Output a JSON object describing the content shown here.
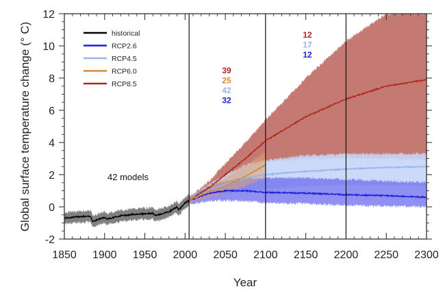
{
  "chart_data": {
    "type": "line",
    "title": "",
    "xlabel": "Year",
    "ylabel": "Global surface temperature change (° C)",
    "xlim": [
      1850,
      2300
    ],
    "ylim": [
      -2,
      12
    ],
    "xticks": [
      "1850",
      "1900",
      "1950",
      "2000",
      "2050",
      "2100",
      "2150",
      "2200",
      "2250",
      "2300"
    ],
    "yticks": [
      "-2",
      "0",
      "2",
      "4",
      "6",
      "8",
      "10",
      "12"
    ],
    "grid": false,
    "vertical_lines": [
      2005,
      2100,
      2200
    ],
    "legend": {
      "placement": "top-left",
      "entries": [
        {
          "label": "historical",
          "color": "#000000"
        },
        {
          "label": "RCP2.6",
          "color": "#1f1fd6"
        },
        {
          "label": "RCP4.5",
          "color": "#9bb6ea"
        },
        {
          "label": "RCP6.0",
          "color": "#d48b3c"
        },
        {
          "label": "RCP8.5",
          "color": "#b02a1c"
        }
      ]
    },
    "annotations": {
      "models_label": "42 models",
      "counts_2006_2100": [
        {
          "value": "39",
          "series": "RCP8.5",
          "color": "#b02a1c"
        },
        {
          "value": "25",
          "series": "RCP6.0",
          "color": "#d48b3c"
        },
        {
          "value": "42",
          "series": "RCP4.5",
          "color": "#9bb6ea"
        },
        {
          "value": "32",
          "series": "RCP2.6",
          "color": "#1f1fd6"
        }
      ],
      "counts_2100_2300": [
        {
          "value": "12",
          "series": "RCP8.5",
          "color": "#b02a1c"
        },
        {
          "value": "17",
          "series": "RCP4.5",
          "color": "#9bb6ea"
        },
        {
          "value": "12",
          "series": "RCP2.6",
          "color": "#1f1fd6"
        }
      ]
    },
    "series": [
      {
        "name": "historical",
        "color": "#000000",
        "band_color": "#808080",
        "x": [
          1850,
          1870,
          1883,
          1885,
          1900,
          1903,
          1920,
          1940,
          1960,
          1963,
          1980,
          1990,
          1992,
          2000,
          2005
        ],
        "mean": [
          -0.7,
          -0.6,
          -0.6,
          -0.9,
          -0.65,
          -0.75,
          -0.55,
          -0.45,
          -0.4,
          -0.55,
          -0.3,
          0.0,
          -0.2,
          0.25,
          0.4
        ],
        "band": 0.35
      },
      {
        "name": "RCP2.6",
        "color": "#1f1fd6",
        "band_color": "#6b6bee",
        "x": [
          2005,
          2030,
          2050,
          2075,
          2100,
          2150,
          2200,
          2250,
          2300
        ],
        "mean": [
          0.4,
          0.85,
          1.0,
          1.0,
          0.9,
          0.85,
          0.75,
          0.7,
          0.6
        ],
        "low": [
          0.15,
          0.35,
          0.4,
          0.35,
          0.25,
          0.2,
          0.1,
          0.05,
          0.0
        ],
        "high": [
          0.6,
          1.3,
          1.6,
          1.8,
          1.8,
          1.8,
          1.7,
          1.6,
          1.5
        ]
      },
      {
        "name": "RCP4.5",
        "color": "#9bb6ea",
        "band_color": "#c5d6f7",
        "x": [
          2005,
          2030,
          2050,
          2075,
          2100,
          2150,
          2200,
          2250,
          2300
        ],
        "mean": [
          0.4,
          1.0,
          1.4,
          1.8,
          2.0,
          2.2,
          2.35,
          2.45,
          2.5
        ],
        "low": [
          0.2,
          0.6,
          0.8,
          1.0,
          1.1,
          1.3,
          1.35,
          1.35,
          1.3
        ],
        "high": [
          0.6,
          1.4,
          2.0,
          2.6,
          2.9,
          3.2,
          3.3,
          3.3,
          3.3
        ]
      },
      {
        "name": "RCP6.0",
        "color": "#d48b3c",
        "band_color": "#e0a070",
        "x": [
          2005,
          2030,
          2050,
          2075,
          2100
        ],
        "mean": [
          0.4,
          0.95,
          1.3,
          1.9,
          2.6
        ],
        "low": [
          0.2,
          0.6,
          0.85,
          1.3,
          1.8
        ],
        "high": [
          0.6,
          1.3,
          1.8,
          2.6,
          3.4
        ]
      },
      {
        "name": "RCP8.5",
        "color": "#b02a1c",
        "band_color": "#c47a72",
        "x": [
          2005,
          2030,
          2050,
          2075,
          2100,
          2150,
          2200,
          2250,
          2300
        ],
        "mean": [
          0.4,
          1.2,
          2.0,
          3.0,
          4.1,
          5.6,
          6.7,
          7.5,
          7.9
        ],
        "low": [
          0.2,
          0.8,
          1.3,
          2.0,
          2.8,
          3.0,
          3.0,
          3.0,
          2.9
        ],
        "high": [
          0.6,
          1.6,
          2.7,
          4.0,
          5.4,
          8.0,
          10.3,
          12.0,
          12.0
        ]
      }
    ]
  }
}
